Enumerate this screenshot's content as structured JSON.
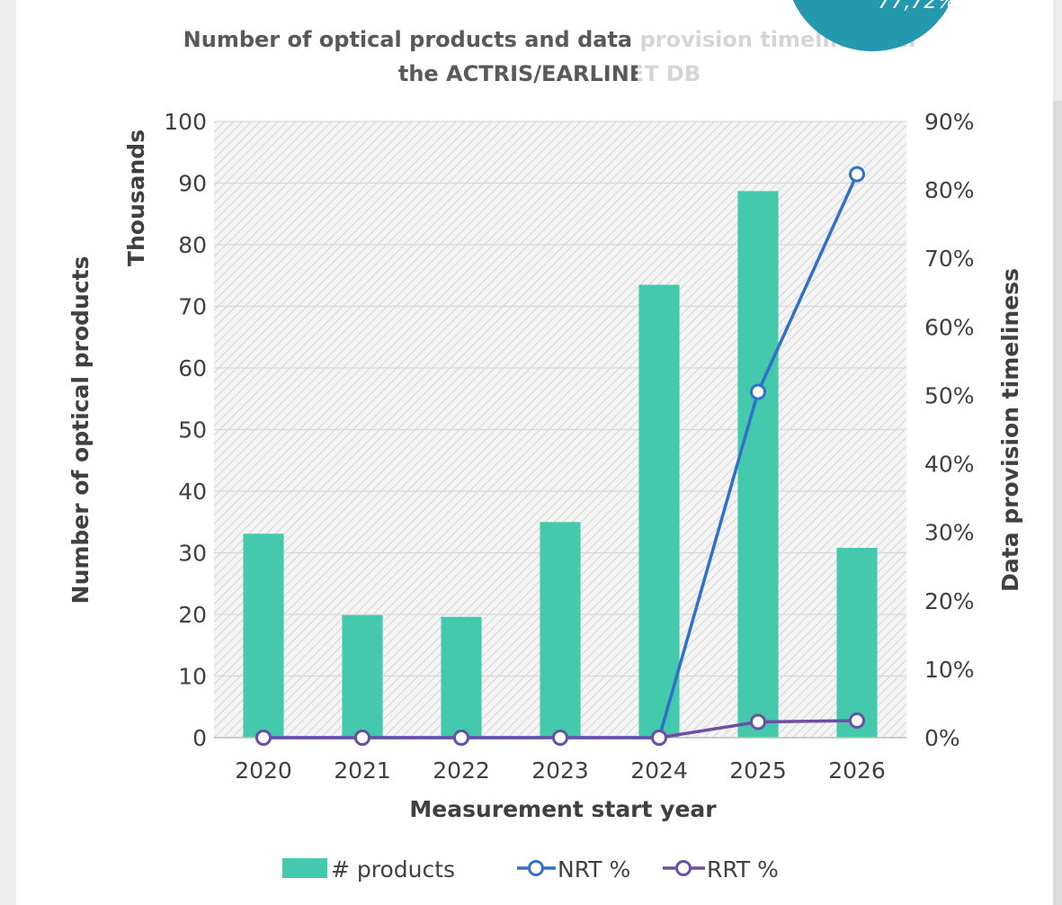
{
  "chart_data": {
    "type": "bar+line",
    "title_line1_shown": "Number of optical products and data provision timeliness in",
    "title_line2_shown": "the ACTRIS/EARLINET DB",
    "categories": [
      "2020",
      "2021",
      "2022",
      "2023",
      "2024",
      "2025",
      "2026"
    ],
    "xlabel": "Measurement start year",
    "ylabel_left": "Number of optical products",
    "ylabel_left_units": "Thousands",
    "ylabel_right": "Data provision timeliness",
    "ylim_left": [
      0,
      100
    ],
    "ylim_right": [
      0,
      90
    ],
    "yticks_left": [
      "0",
      "10",
      "20",
      "30",
      "40",
      "50",
      "60",
      "70",
      "80",
      "90",
      "100"
    ],
    "yticks_right": [
      "0%",
      "10%",
      "20%",
      "30%",
      "40%",
      "50%",
      "60%",
      "70%",
      "80%",
      "90%"
    ],
    "grid": true,
    "legend_position": "bottom",
    "series": [
      {
        "name": "# products",
        "kind": "bar",
        "axis": "left",
        "color": "#44c9ad",
        "values": [
          33.1,
          19.9,
          19.6,
          35.0,
          73.5,
          88.7,
          30.8
        ]
      },
      {
        "name": "NRT %",
        "kind": "line",
        "axis": "right",
        "color": "#2f71c9",
        "values": [
          0,
          0,
          0,
          0,
          0,
          50.5,
          82.3
        ]
      },
      {
        "name": "RRT %",
        "kind": "line",
        "axis": "right",
        "color": "#6a4fa3",
        "values": [
          0,
          0,
          0,
          0,
          0,
          2.3,
          2.5
        ]
      }
    ]
  },
  "overlay_badge": {
    "text": "77,72%",
    "color": "#2498ad"
  }
}
